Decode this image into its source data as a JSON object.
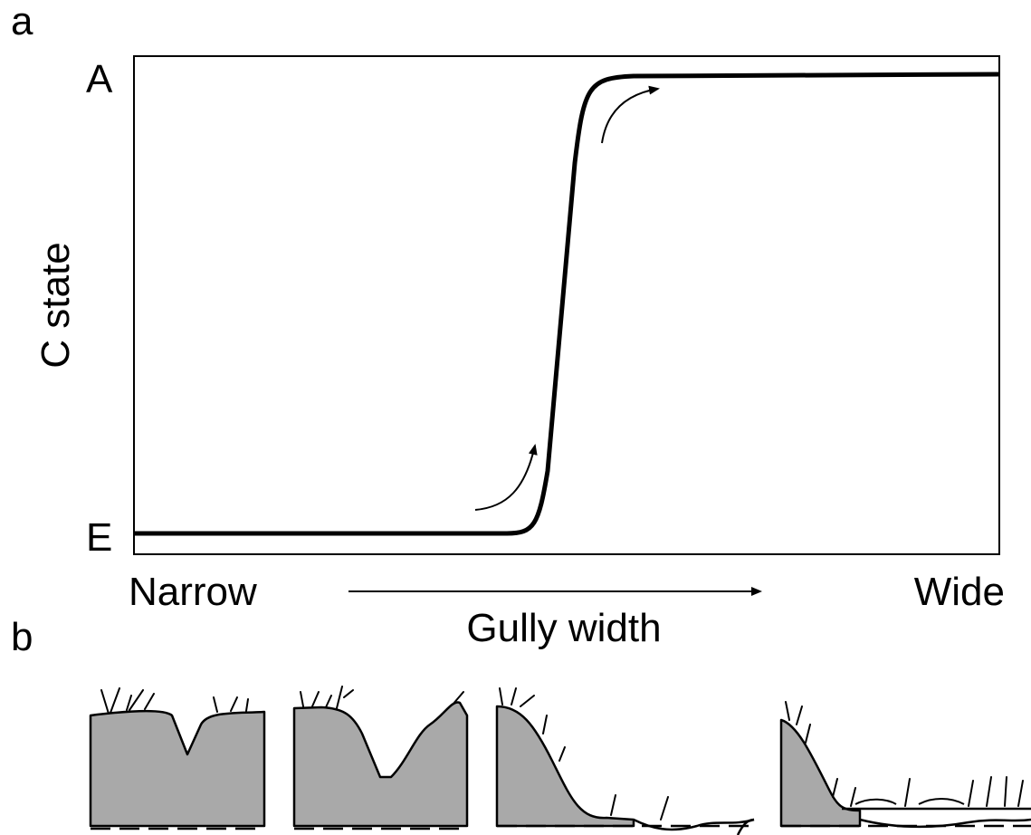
{
  "panel_a": {
    "label": "a",
    "y_top": "A",
    "y_bottom": "E",
    "y_axis_title": "C state",
    "x_left": "Narrow",
    "x_right": "Wide",
    "x_axis_title": "Gully width"
  },
  "panel_b": {
    "label": "b"
  }
}
